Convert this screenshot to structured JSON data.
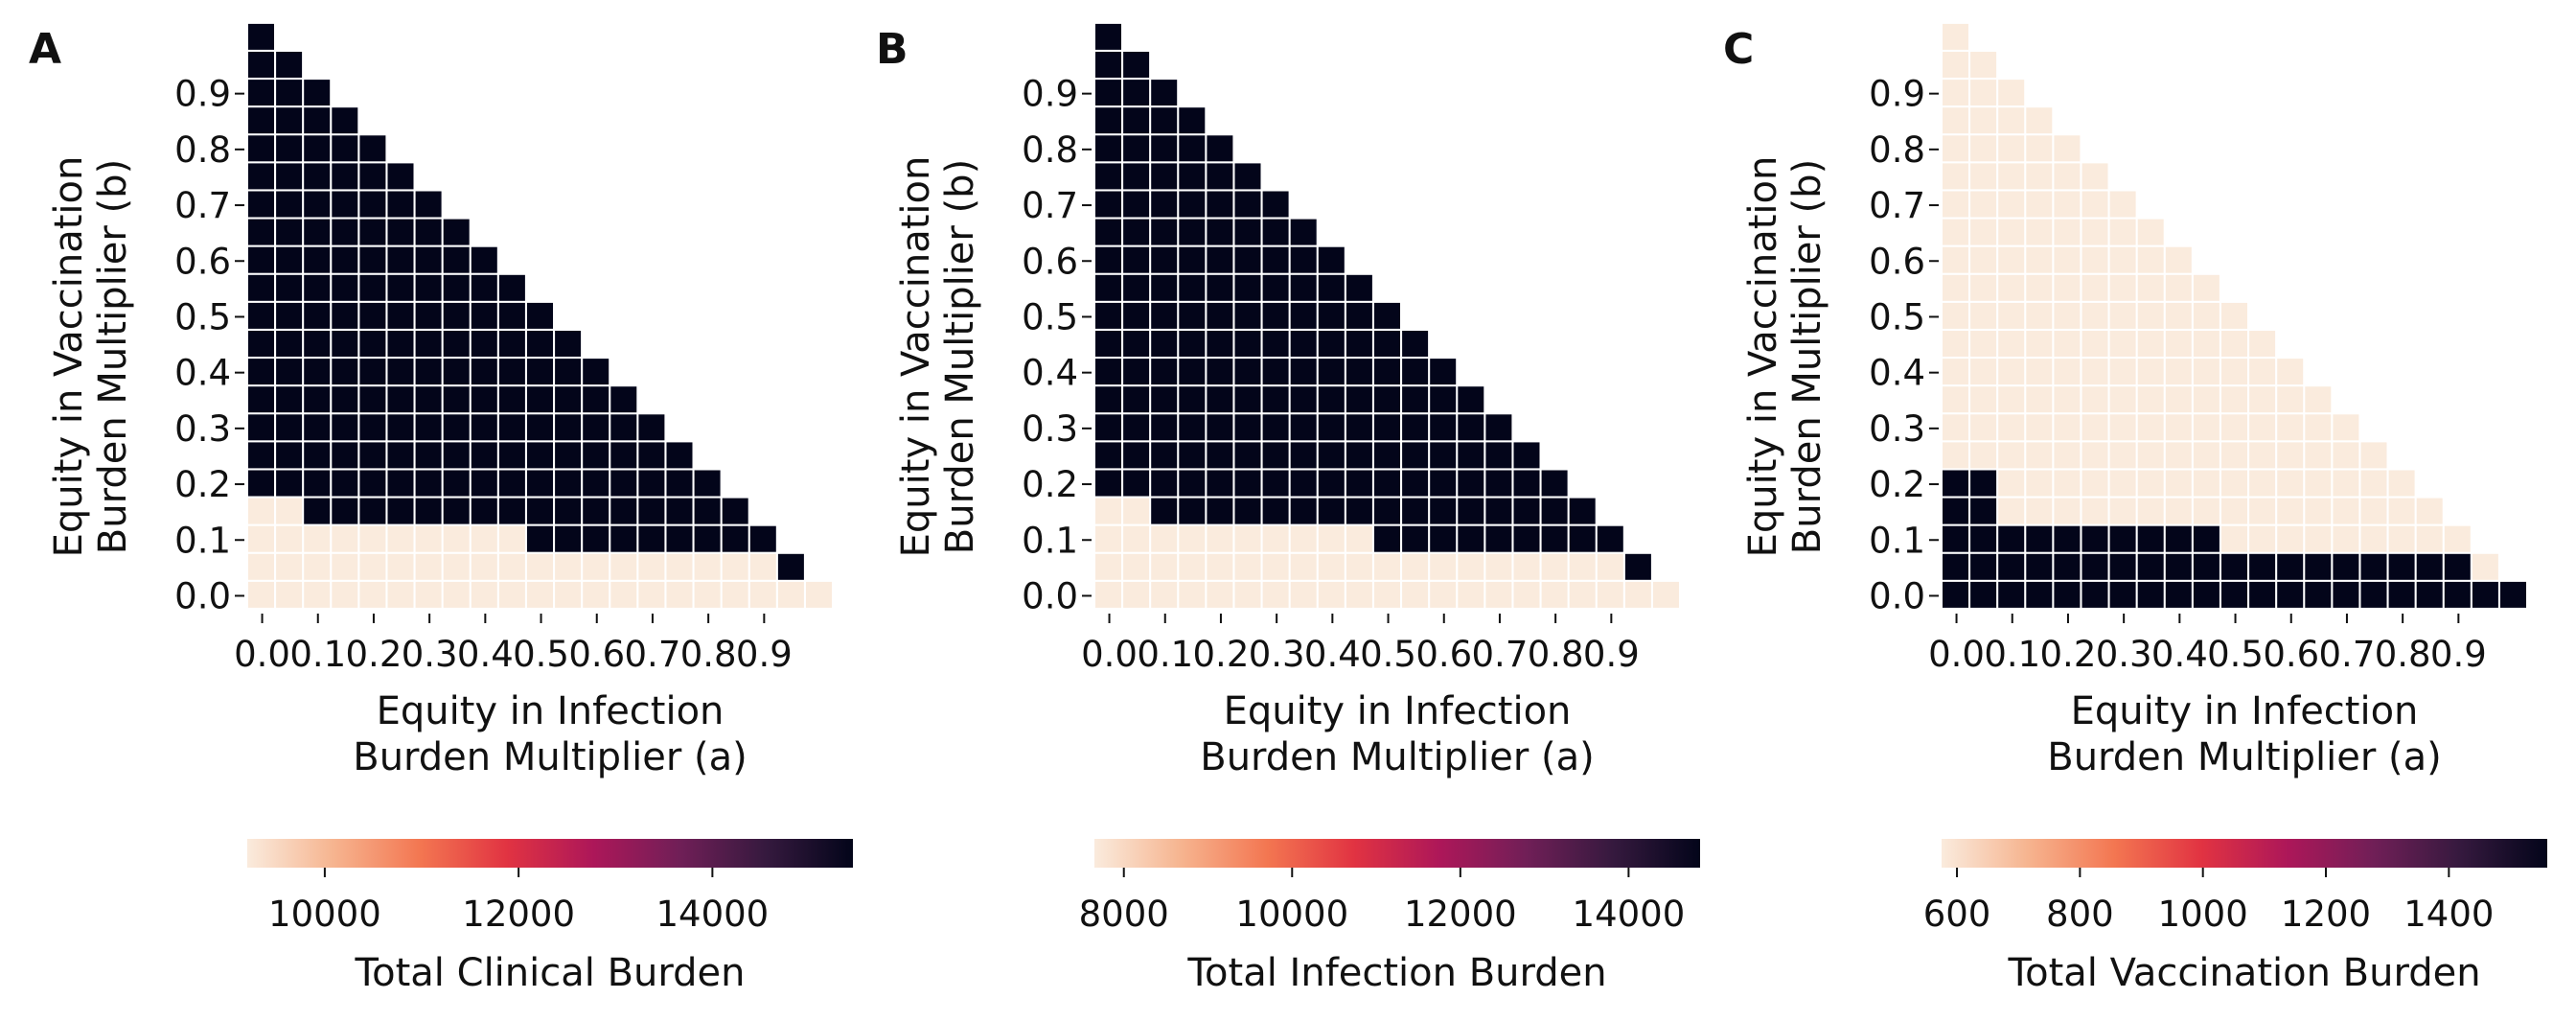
{
  "figure": {
    "panels": [
      "A",
      "B",
      "C"
    ]
  },
  "chart_data": [
    {
      "type": "heatmap",
      "panel_label": "A",
      "x_tick_labels": [
        "0.0",
        "0.1",
        "0.2",
        "0.3",
        "0.4",
        "0.5",
        "0.6",
        "0.7",
        "0.8",
        "0.9"
      ],
      "y_tick_labels": [
        "0.0",
        "0.1",
        "0.2",
        "0.3",
        "0.4",
        "0.5",
        "0.6",
        "0.7",
        "0.8",
        "0.9"
      ],
      "xlabel": [
        "Equity in Infection",
        "Burden Multiplier (a)"
      ],
      "ylabel": [
        "Equity in Vaccination",
        "Burden Multiplier (b)"
      ],
      "grid_size": 21,
      "dark_rows": [
        {
          "b_index": 0,
          "min_a_index": 21
        },
        {
          "b_index": 1,
          "min_a_index": 19
        },
        {
          "b_index": 2,
          "min_a_index": 10
        },
        {
          "b_index": 3,
          "min_a_index": 2
        },
        {
          "b_index": 4,
          "min_a_index": 0
        }
      ],
      "colorbar": {
        "label": "Total Clinical Burden",
        "min": 9200,
        "max": 15450,
        "ticks": [
          10000,
          12000,
          14000
        ]
      },
      "value_low": 9200,
      "value_high": 15450,
      "colormap": [
        "#faebdd",
        "#f6b48f",
        "#f37651",
        "#e13342",
        "#ad1759",
        "#701f57",
        "#35193e",
        "#03051a"
      ]
    },
    {
      "type": "heatmap",
      "panel_label": "B",
      "x_tick_labels": [
        "0.0",
        "0.1",
        "0.2",
        "0.3",
        "0.4",
        "0.5",
        "0.6",
        "0.7",
        "0.8",
        "0.9"
      ],
      "y_tick_labels": [
        "0.0",
        "0.1",
        "0.2",
        "0.3",
        "0.4",
        "0.5",
        "0.6",
        "0.7",
        "0.8",
        "0.9"
      ],
      "xlabel": [
        "Equity in Infection",
        "Burden Multiplier (a)"
      ],
      "ylabel": [
        "Equity in Vaccination",
        "Burden Multiplier (b)"
      ],
      "grid_size": 21,
      "dark_rows": [
        {
          "b_index": 0,
          "min_a_index": 21
        },
        {
          "b_index": 1,
          "min_a_index": 19
        },
        {
          "b_index": 2,
          "min_a_index": 10
        },
        {
          "b_index": 3,
          "min_a_index": 2
        },
        {
          "b_index": 4,
          "min_a_index": 0
        }
      ],
      "colorbar": {
        "label": "Total Infection Burden",
        "min": 7650,
        "max": 14850,
        "ticks": [
          8000,
          10000,
          12000,
          14000
        ]
      },
      "value_low": 7650,
      "value_high": 14850,
      "colormap": [
        "#faebdd",
        "#f6b48f",
        "#f37651",
        "#e13342",
        "#ad1759",
        "#701f57",
        "#35193e",
        "#03051a"
      ]
    },
    {
      "type": "heatmap",
      "panel_label": "C",
      "x_tick_labels": [
        "0.0",
        "0.1",
        "0.2",
        "0.3",
        "0.4",
        "0.5",
        "0.6",
        "0.7",
        "0.8",
        "0.9"
      ],
      "y_tick_labels": [
        "0.0",
        "0.1",
        "0.2",
        "0.3",
        "0.4",
        "0.5",
        "0.6",
        "0.7",
        "0.8",
        "0.9"
      ],
      "xlabel": [
        "Equity in Infection",
        "Burden Multiplier (a)"
      ],
      "ylabel": [
        "Equity in Vaccination",
        "Burden Multiplier (b)"
      ],
      "grid_size": 21,
      "dark_rows": [
        {
          "b_index": 0,
          "max_a_index": 20
        },
        {
          "b_index": 1,
          "max_a_index": 18
        },
        {
          "b_index": 2,
          "max_a_index": 9
        },
        {
          "b_index": 3,
          "max_a_index": 1
        },
        {
          "b_index": 4,
          "max_a_index": 1
        }
      ],
      "colorbar": {
        "label": "Total Vaccination Burden",
        "min": 575,
        "max": 1560,
        "ticks": [
          600,
          800,
          1000,
          1200,
          1400
        ]
      },
      "value_low": 575,
      "value_high": 1560,
      "colormap": [
        "#faebdd",
        "#f6b48f",
        "#f37651",
        "#e13342",
        "#ad1759",
        "#701f57",
        "#35193e",
        "#03051a"
      ]
    }
  ]
}
